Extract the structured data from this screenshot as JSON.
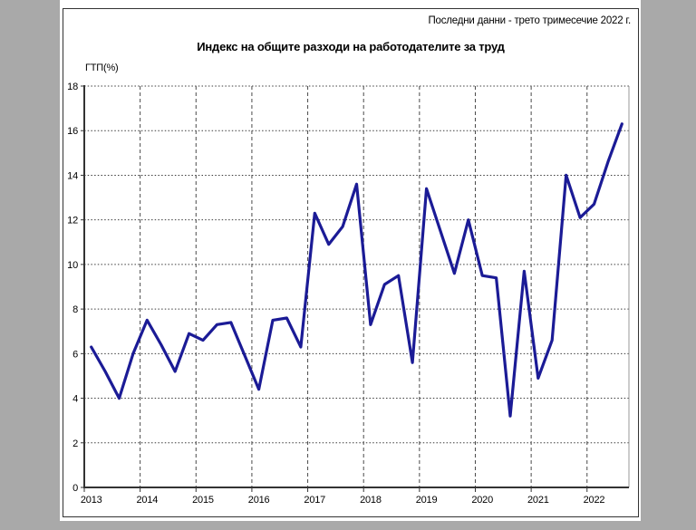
{
  "window": {
    "background_color": "#a9a9a9",
    "panel_background_color": "#ffffff",
    "panel_border_color": "#333333"
  },
  "header": {
    "note": "Последни данни - трето тримесечие 2022 г."
  },
  "chart_data": {
    "type": "line",
    "title": "Индекс на общите разходи на работодателите за труд",
    "xlabel": "",
    "ylabel": "ГТП(%)",
    "ylim": [
      0,
      18
    ],
    "y_tick_step": 2,
    "grid": true,
    "legend": "none",
    "line_color": "#1b1b96",
    "x_tick_labels": [
      "2013",
      "2014",
      "2015",
      "2016",
      "2017",
      "2018",
      "2019",
      "2020",
      "2021",
      "2022"
    ],
    "periods": [
      "2013-Q1",
      "2013-Q2",
      "2013-Q3",
      "2013-Q4",
      "2014-Q1",
      "2014-Q2",
      "2014-Q3",
      "2014-Q4",
      "2015-Q1",
      "2015-Q2",
      "2015-Q3",
      "2015-Q4",
      "2016-Q1",
      "2016-Q2",
      "2016-Q3",
      "2016-Q4",
      "2017-Q1",
      "2017-Q2",
      "2017-Q3",
      "2017-Q4",
      "2018-Q1",
      "2018-Q2",
      "2018-Q3",
      "2018-Q4",
      "2019-Q1",
      "2019-Q2",
      "2019-Q3",
      "2019-Q4",
      "2020-Q1",
      "2020-Q2",
      "2020-Q3",
      "2020-Q4",
      "2021-Q1",
      "2021-Q2",
      "2021-Q3",
      "2021-Q4",
      "2022-Q1",
      "2022-Q2",
      "2022-Q3"
    ],
    "values": [
      6.3,
      5.2,
      4.0,
      6.0,
      7.5,
      6.4,
      5.2,
      6.9,
      6.6,
      7.3,
      7.4,
      5.9,
      4.4,
      7.5,
      7.6,
      6.3,
      12.3,
      10.9,
      11.7,
      13.6,
      7.3,
      9.1,
      9.5,
      5.6,
      13.4,
      11.5,
      9.6,
      12.0,
      9.5,
      9.4,
      3.2,
      9.7,
      4.9,
      6.6,
      14.0,
      12.1,
      12.7,
      14.6,
      16.3
    ]
  }
}
